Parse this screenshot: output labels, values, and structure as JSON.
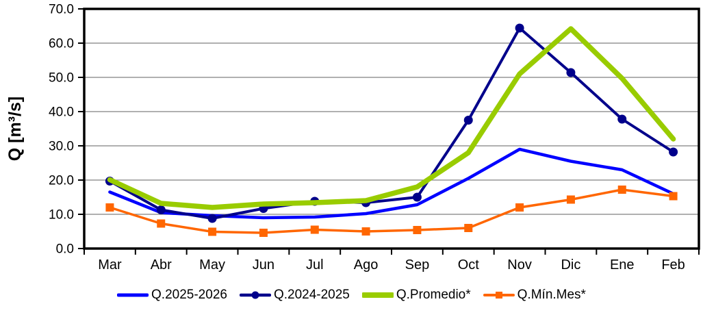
{
  "chart_data": {
    "type": "line",
    "title": "",
    "xlabel": "",
    "ylabel": "Q [m³/s]",
    "ylim": [
      0,
      70
    ],
    "ytick_step": 10,
    "ytick_decimals": 1,
    "grid": "horizontal",
    "legend_position": "bottom",
    "categories": [
      "Mar",
      "Abr",
      "May",
      "Jun",
      "Jul",
      "Ago",
      "Sep",
      "Oct",
      "Nov",
      "Dic",
      "Ene",
      "Feb"
    ],
    "series": [
      {
        "name": "Q.2025-2026",
        "color": "#0000FF",
        "marker": "none",
        "line_width": 4.5,
        "values": [
          16.5,
          10.5,
          9.6,
          9.0,
          9.2,
          10.2,
          12.8,
          20.5,
          29.0,
          25.5,
          23.0,
          16.0
        ]
      },
      {
        "name": "Q.2024-2025",
        "color": "#00008B",
        "marker": "circle",
        "line_width": 4,
        "values": [
          19.7,
          11.3,
          8.8,
          11.7,
          13.8,
          13.4,
          15.0,
          37.5,
          64.4,
          51.4,
          37.8,
          28.2
        ]
      },
      {
        "name": "Q.Promedio*",
        "color": "#99CC00",
        "marker": "none",
        "line_width": 7.5,
        "values": [
          20.1,
          13.2,
          12.0,
          13.0,
          13.4,
          14.0,
          18.0,
          28.0,
          51.0,
          64.2,
          49.7,
          32.0
        ]
      },
      {
        "name": "Q.Mín.Mes*",
        "color": "#FF6600",
        "marker": "square",
        "line_width": 3.5,
        "values": [
          12.0,
          7.3,
          4.9,
          4.6,
          5.5,
          5.0,
          5.4,
          6.0,
          12.0,
          14.3,
          17.2,
          15.3
        ]
      }
    ],
    "colors": {
      "gridline": "#808080",
      "axis": "#000000",
      "text": "#000000",
      "background": "#FFFFFF"
    }
  }
}
